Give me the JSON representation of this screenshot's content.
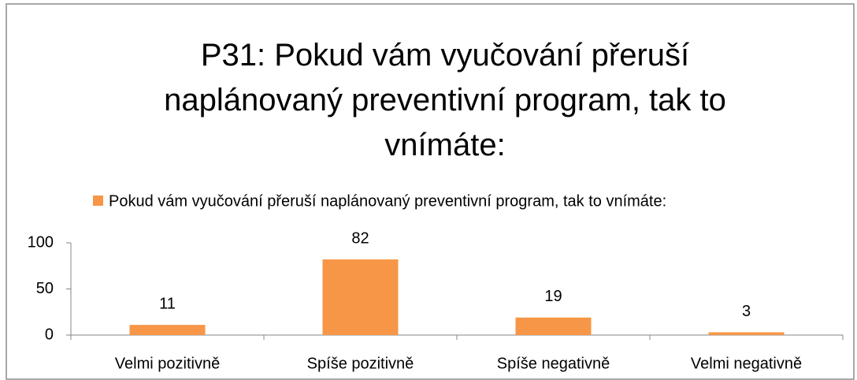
{
  "chart_data": {
    "type": "bar",
    "title": "P31: Pokud vám vyučování přeruší naplánovaný preventivní program, tak to vnímáte:",
    "categories": [
      "Velmi pozitivně",
      "Spíše pozitivně",
      "Spíše negativně",
      "Velmi negativně"
    ],
    "series": [
      {
        "name": "Pokud vám vyučování přeruší naplánovaný preventivní program, tak to vnímáte:",
        "color": "#f79646",
        "values": [
          11,
          82,
          19,
          3
        ]
      }
    ],
    "ylim": [
      0,
      100
    ],
    "yticks": [
      0,
      50,
      100
    ],
    "grid": false,
    "legend": "top"
  }
}
